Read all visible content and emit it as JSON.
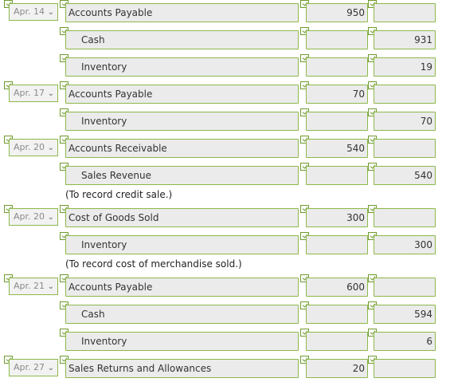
{
  "entries": [
    {
      "date": "Apr. 14",
      "account": "Accounts Payable",
      "debit": "950",
      "credit": ""
    },
    {
      "date": "",
      "account": "Cash",
      "debit": "",
      "credit": "931"
    },
    {
      "date": "",
      "account": "Inventory",
      "debit": "",
      "credit": "19"
    },
    {
      "date": "Apr. 17",
      "account": "Accounts Payable",
      "debit": "70",
      "credit": ""
    },
    {
      "date": "",
      "account": "Inventory",
      "debit": "",
      "credit": "70"
    },
    {
      "date": "Apr. 20",
      "account": "Accounts Receivable",
      "debit": "540",
      "credit": ""
    },
    {
      "date": "",
      "account": "Sales Revenue",
      "debit": "",
      "credit": "540"
    },
    {
      "date": "Apr. 20",
      "account": "Cost of Goods Sold",
      "debit": "300",
      "credit": ""
    },
    {
      "date": "",
      "account": "Inventory",
      "debit": "",
      "credit": "300"
    },
    {
      "date": "Apr. 21",
      "account": "Accounts Payable",
      "debit": "600",
      "credit": ""
    },
    {
      "date": "",
      "account": "Cash",
      "debit": "",
      "credit": "594"
    },
    {
      "date": "",
      "account": "Inventory",
      "debit": "",
      "credit": "6"
    },
    {
      "date": "Apr. 27",
      "account": "Sales Returns and Allowances",
      "debit": "20",
      "credit": ""
    }
  ],
  "notes": {
    "credit_sale": "(To record credit sale.)",
    "cost_sold": "(To record cost of merchandise sold.)"
  },
  "colors": {
    "check_border": "#6f9a2e",
    "field_border": "#8db84a",
    "field_bg": "#ebebeb"
  }
}
